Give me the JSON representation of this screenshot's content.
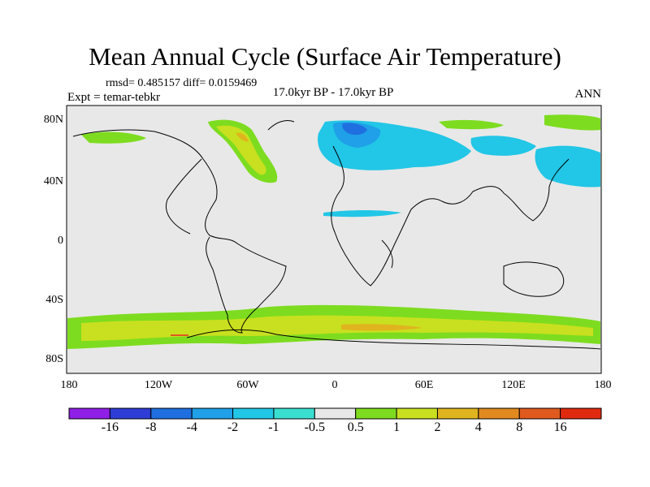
{
  "title": "Mean Annual Cycle (Surface Air Temperature)",
  "stats_line": "rmsd= 0.485157 diff= 0.0159469",
  "experiment_label": "Expt = temar-tebkr",
  "period_label": "17.0kyr BP - 17.0kyr BP",
  "season_label": "ANN",
  "lat_ticks": [
    "80N",
    "40N",
    "0",
    "40S",
    "80S"
  ],
  "lon_ticks": [
    "180",
    "120W",
    "60W",
    "0",
    "60E",
    "120E",
    "180"
  ],
  "colorbar": {
    "colors": [
      "#8f1fe6",
      "#2e3dd6",
      "#1f6fe0",
      "#1fa0e8",
      "#22c6e6",
      "#3adfd0",
      "#e8e8e8",
      "#7ddc1f",
      "#c8e01f",
      "#e0b41f",
      "#e08a1f",
      "#e05a1f",
      "#e02a10"
    ],
    "labels": [
      "-16",
      "-8",
      "-4",
      "-2",
      "-1",
      "-0.5",
      "0.5",
      "1",
      "2",
      "4",
      "8",
      "16"
    ]
  },
  "map_colors": {
    "background": "#e8e8e8",
    "green": "#7ddc1f",
    "yellow_green": "#c8e01f",
    "orange": "#e0b41f",
    "cyan": "#22c6e6",
    "light_blue": "#1fa0e8",
    "blue": "#1f6fe0",
    "red": "#e05a1f"
  }
}
